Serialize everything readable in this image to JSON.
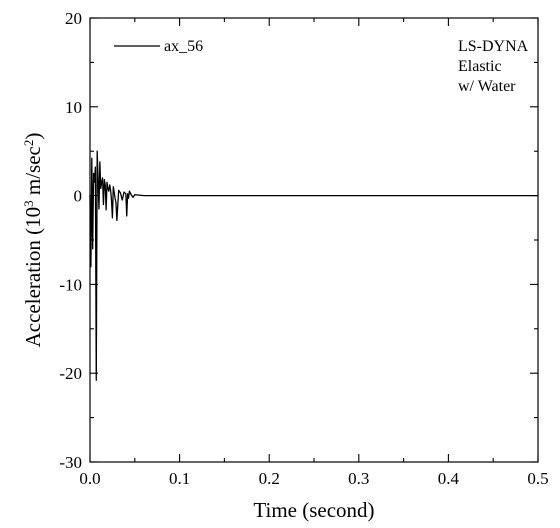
{
  "chart_data": {
    "type": "line",
    "xlabel": "Time (second)",
    "ylabel": {
      "prefix": "Acceleration (10",
      "exp1": "3",
      "middle": " m/sec",
      "exp2": "2",
      "suffix": ")"
    },
    "xlim": [
      0.0,
      0.5
    ],
    "ylim": [
      -30,
      20
    ],
    "x_ticks": [
      0.0,
      0.1,
      0.2,
      0.3,
      0.4,
      0.5
    ],
    "x_tick_labels": [
      "0.0",
      "0.1",
      "0.2",
      "0.3",
      "0.4",
      "0.5"
    ],
    "y_ticks": [
      -30,
      -20,
      -10,
      0,
      10,
      20
    ],
    "y_tick_labels": [
      "-30",
      "-20",
      "-10",
      "0",
      "10",
      "20"
    ],
    "grid": false,
    "legend": {
      "position": "top-left",
      "entries": [
        "ax_56"
      ]
    },
    "annotation": {
      "position": "top-right",
      "lines": [
        "LS-DYNA",
        "Elastic",
        "w/ Water"
      ]
    },
    "series": [
      {
        "name": "ax_56",
        "color": "#000000",
        "x": [
          0.0,
          0.001,
          0.002,
          0.003,
          0.004,
          0.005,
          0.006,
          0.007,
          0.008,
          0.009,
          0.01,
          0.011,
          0.012,
          0.013,
          0.014,
          0.015,
          0.016,
          0.017,
          0.018,
          0.019,
          0.02,
          0.021,
          0.022,
          0.023,
          0.024,
          0.025,
          0.026,
          0.027,
          0.028,
          0.029,
          0.03,
          0.032,
          0.034,
          0.036,
          0.038,
          0.04,
          0.041,
          0.042,
          0.043,
          0.044,
          0.045,
          0.046,
          0.048,
          0.05,
          0.055,
          0.06,
          0.07,
          0.08,
          0.1,
          0.15,
          0.2,
          0.25,
          0.3,
          0.35,
          0.4,
          0.45,
          0.5
        ],
        "y": [
          0.0,
          -8.0,
          4.2,
          -6.0,
          2.5,
          1.5,
          3.2,
          -20.8,
          5.0,
          2.0,
          -1.5,
          3.8,
          0.8,
          1.5,
          2.0,
          -1.0,
          1.8,
          1.2,
          -1.6,
          1.5,
          0.8,
          0.5,
          1.2,
          0.6,
          -0.5,
          -2.5,
          1.0,
          0.4,
          -0.3,
          -0.8,
          -2.8,
          0.6,
          0.3,
          -0.5,
          0.4,
          0.2,
          -2.3,
          0.2,
          -0.3,
          0.5,
          0.3,
          0.1,
          -0.2,
          0.1,
          0.05,
          0.0,
          0.0,
          0.0,
          0.0,
          0.0,
          0.0,
          0.0,
          0.0,
          0.0,
          0.0,
          0.0,
          0.0
        ]
      }
    ]
  }
}
